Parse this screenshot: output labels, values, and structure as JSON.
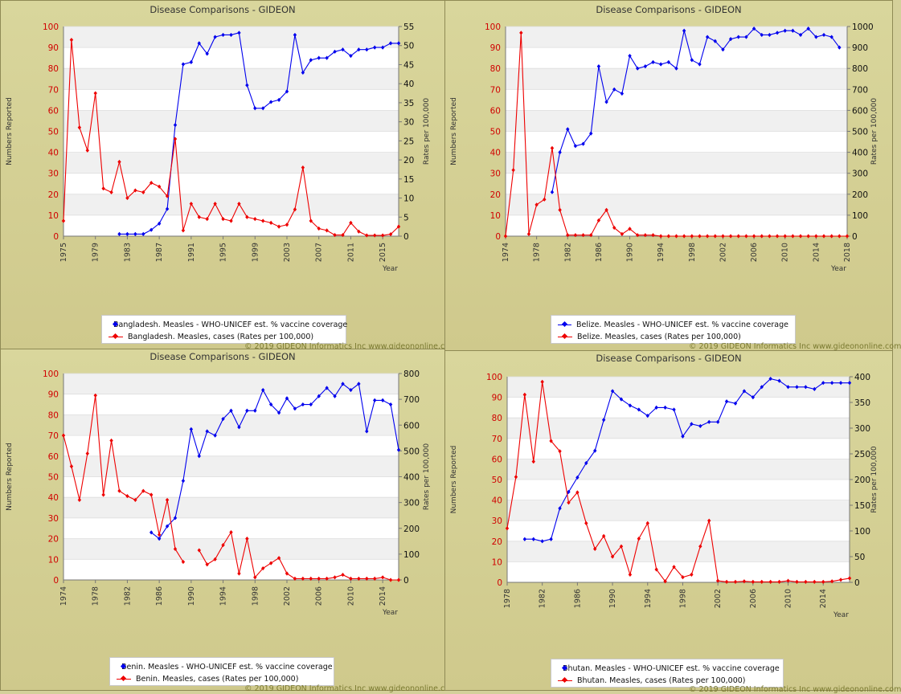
{
  "footer": "© 2019 GIDEON Informatics Inc www.gideononline.com",
  "colors": {
    "coverage": "#0000ee",
    "cases": "#ee0000",
    "left_axis_text": "#d00000"
  },
  "chart_data": [
    {
      "type": "line",
      "title": "Disease Comparisons - GIDEON",
      "ylabel_left": "Numbers Reported",
      "ylabel_right": "Rates per 100,000",
      "xlabel": "Year",
      "x_range": [
        1975,
        2017
      ],
      "x_ticks": [
        1975,
        1979,
        1983,
        1987,
        1991,
        1995,
        1999,
        2003,
        2007,
        2011,
        2015
      ],
      "ylim_left": [
        0,
        100
      ],
      "y_ticks_left": [
        0,
        10,
        20,
        30,
        40,
        50,
        60,
        70,
        80,
        90,
        100
      ],
      "ylim_right": [
        0,
        55
      ],
      "y_ticks_right": [
        0,
        5,
        10,
        15,
        20,
        25,
        30,
        35,
        40,
        45,
        50,
        55
      ],
      "grid": true,
      "series": [
        {
          "name": "Bangladesh. Measles - WHO-UNICEF est. % vaccine coverage",
          "axis": "left",
          "color": "#0000ee",
          "x": [
            1982,
            1983,
            1984,
            1985,
            1986,
            1987,
            1988,
            1989,
            1990,
            1991,
            1992,
            1993,
            1994,
            1995,
            1996,
            1997,
            1998,
            1999,
            2000,
            2001,
            2002,
            2003,
            2004,
            2005,
            2006,
            2007,
            2008,
            2009,
            2010,
            2011,
            2012,
            2013,
            2014,
            2015,
            2016,
            2017
          ],
          "y": [
            1,
            1,
            1,
            1,
            3,
            6,
            13,
            53,
            82,
            83,
            92,
            87,
            95,
            96,
            96,
            97,
            72,
            61,
            61,
            64,
            65,
            69,
            96,
            78,
            84,
            85,
            85,
            88,
            89,
            86,
            89,
            89,
            90,
            90,
            92,
            92
          ]
        },
        {
          "name": "Bangladesh. Measles, cases (Rates per 100,000)",
          "axis": "right",
          "color": "#ee0000",
          "x": [
            1975,
            1976,
            1977,
            1978,
            1979,
            1980,
            1981,
            1982,
            1983,
            1984,
            1985,
            1986,
            1987,
            1988,
            1989,
            1990,
            1991,
            1992,
            1993,
            1994,
            1995,
            1996,
            1997,
            1998,
            1999,
            2000,
            2001,
            2002,
            2003,
            2004,
            2005,
            2006,
            2007,
            2008,
            2009,
            2010,
            2011,
            2012,
            2013,
            2014,
            2015,
            2016,
            2017
          ],
          "y": [
            4,
            51.5,
            28.5,
            22.5,
            37.5,
            12.5,
            11.5,
            19.5,
            10,
            12,
            11.5,
            14,
            13,
            10.5,
            25.5,
            1.5,
            8.5,
            5,
            4.5,
            8.5,
            4.5,
            4,
            8.5,
            5,
            4.5,
            4,
            3.5,
            2.5,
            3,
            7,
            18,
            4,
            2,
            1.5,
            0.3,
            0.3,
            3.5,
            1.2,
            0.2,
            0.2,
            0.2,
            0.5,
            2.5
          ]
        }
      ]
    },
    {
      "type": "line",
      "title": "Disease Comparisons - GIDEON",
      "ylabel_left": "Numbers Reported",
      "ylabel_right": "Rates per 100,000",
      "xlabel": "Year",
      "x_range": [
        1974,
        2018
      ],
      "x_ticks": [
        1974,
        1978,
        1982,
        1986,
        1990,
        1994,
        1998,
        2002,
        2006,
        2010,
        2014,
        2018
      ],
      "ylim_left": [
        0,
        100
      ],
      "y_ticks_left": [
        0,
        10,
        20,
        30,
        40,
        50,
        60,
        70,
        80,
        90,
        100
      ],
      "ylim_right": [
        0,
        1000
      ],
      "y_ticks_right": [
        0,
        100,
        200,
        300,
        400,
        500,
        600,
        700,
        800,
        900,
        1000
      ],
      "grid": true,
      "series": [
        {
          "name": "Belize. Measles - WHO-UNICEF est. % vaccine coverage",
          "axis": "left",
          "color": "#0000ee",
          "x": [
            1980,
            1981,
            1982,
            1983,
            1984,
            1985,
            1986,
            1987,
            1988,
            1989,
            1990,
            1991,
            1992,
            1993,
            1994,
            1995,
            1996,
            1997,
            1998,
            1999,
            2000,
            2001,
            2002,
            2003,
            2004,
            2005,
            2006,
            2007,
            2008,
            2009,
            2010,
            2011,
            2012,
            2013,
            2014,
            2015,
            2016,
            2017
          ],
          "y": [
            21,
            40,
            51,
            43,
            44,
            49,
            81,
            64,
            70,
            68,
            86,
            80,
            81,
            83,
            82,
            83,
            80,
            98,
            84,
            82,
            95,
            93,
            89,
            94,
            95,
            95,
            99,
            96,
            96,
            97,
            98,
            98,
            96,
            99,
            95,
            96,
            95,
            90
          ]
        },
        {
          "name": "Belize. Measles, cases (Rates per 100,000)",
          "axis": "right",
          "color": "#ee0000",
          "x": [
            1974,
            1975,
            1976,
            1977,
            1978,
            1979,
            1980,
            1981,
            1982,
            1983,
            1984,
            1985,
            1986,
            1987,
            1988,
            1989,
            1990,
            1991,
            1992,
            1993,
            1994,
            1995,
            1996,
            1997,
            1998,
            1999,
            2000,
            2001,
            2002,
            2003,
            2004,
            2005,
            2006,
            2007,
            2008,
            2009,
            2010,
            2011,
            2012,
            2013,
            2014,
            2015,
            2016,
            2017,
            2018
          ],
          "y": [
            0,
            315,
            970,
            10,
            150,
            175,
            420,
            125,
            5,
            5,
            5,
            5,
            75,
            125,
            40,
            10,
            35,
            5,
            5,
            5,
            0,
            0,
            0,
            0,
            0,
            0,
            0,
            0,
            0,
            0,
            0,
            0,
            0,
            0,
            0,
            0,
            0,
            0,
            0,
            0,
            0,
            0,
            0,
            0,
            0
          ]
        }
      ]
    },
    {
      "type": "line",
      "title": "Disease Comparisons - GIDEON",
      "ylabel_left": "Numbers Reported",
      "ylabel_right": "Rates per 100,000",
      "xlabel": "Year",
      "x_range": [
        1974,
        2016
      ],
      "x_ticks": [
        1974,
        1978,
        1982,
        1986,
        1990,
        1994,
        1998,
        2002,
        2006,
        2010,
        2014
      ],
      "ylim_left": [
        0,
        100
      ],
      "y_ticks_left": [
        0,
        10,
        20,
        30,
        40,
        50,
        60,
        70,
        80,
        90,
        100
      ],
      "ylim_right": [
        0,
        800
      ],
      "y_ticks_right": [
        0,
        100,
        200,
        300,
        400,
        500,
        600,
        700,
        800
      ],
      "grid": true,
      "series": [
        {
          "name": "Benin. Measles - WHO-UNICEF est. % vaccine coverage",
          "axis": "left",
          "color": "#0000ee",
          "x": [
            1985,
            1986,
            1987,
            1988,
            1989,
            1990,
            1991,
            1992,
            1993,
            1994,
            1995,
            1996,
            1997,
            1998,
            1999,
            2000,
            2001,
            2002,
            2003,
            2004,
            2005,
            2006,
            2007,
            2008,
            2009,
            2010,
            2011,
            2012,
            2013,
            2014,
            2015,
            2016
          ],
          "y": [
            23,
            20,
            26,
            30,
            48,
            73,
            60,
            72,
            70,
            78,
            82,
            74,
            82,
            82,
            92,
            85,
            81,
            88,
            83,
            85,
            85,
            89,
            93,
            89,
            95,
            92,
            95,
            72,
            87,
            87,
            85,
            63
          ]
        },
        {
          "name": "Benin. Measles, cases (Rates per 100,000)",
          "axis": "right",
          "color": "#ee0000",
          "x": [
            1974,
            1975,
            1976,
            1977,
            1978,
            1979,
            1980,
            1981,
            1982,
            1983,
            1984,
            1985,
            1986,
            1987,
            1988,
            1989,
            1990,
            1991,
            1992,
            1993,
            1994,
            1995,
            1996,
            1997,
            1998,
            1999,
            2000,
            2001,
            2002,
            2003,
            2004,
            2005,
            2006,
            2007,
            2008,
            2009,
            2010,
            2011,
            2012,
            2013,
            2014,
            2015,
            2016
          ],
          "y": [
            560,
            440,
            310,
            490,
            715,
            330,
            540,
            345,
            325,
            310,
            345,
            330,
            175,
            310,
            120,
            70,
            null,
            115,
            60,
            80,
            135,
            185,
            25,
            160,
            10,
            45,
            65,
            85,
            25,
            5,
            5,
            5,
            5,
            5,
            10,
            20,
            5,
            5,
            5,
            5,
            10,
            0,
            0
          ]
        }
      ]
    },
    {
      "type": "line",
      "title": "Disease Comparisons - GIDEON",
      "ylabel_left": "Numbers Reported",
      "ylabel_right": "Rates per 100,000",
      "xlabel": "Year",
      "x_range": [
        1978,
        2017
      ],
      "x_ticks": [
        1978,
        1982,
        1986,
        1990,
        1994,
        1998,
        2002,
        2006,
        2010,
        2014
      ],
      "ylim_left": [
        0,
        100
      ],
      "y_ticks_left": [
        0,
        10,
        20,
        30,
        40,
        50,
        60,
        70,
        80,
        90,
        100
      ],
      "ylim_right": [
        0,
        400
      ],
      "y_ticks_right": [
        0,
        50,
        100,
        150,
        200,
        250,
        300,
        350,
        400
      ],
      "grid": true,
      "series": [
        {
          "name": "Bhutan. Measles - WHO-UNICEF est. % vaccine coverage",
          "axis": "left",
          "color": "#0000ee",
          "x": [
            1980,
            1981,
            1982,
            1983,
            1984,
            1985,
            1986,
            1987,
            1988,
            1989,
            1990,
            1991,
            1992,
            1993,
            1994,
            1995,
            1996,
            1997,
            1998,
            1999,
            2000,
            2001,
            2002,
            2003,
            2004,
            2005,
            2006,
            2007,
            2008,
            2009,
            2010,
            2011,
            2012,
            2013,
            2014,
            2015,
            2016,
            2017
          ],
          "y": [
            21,
            21,
            20,
            21,
            36,
            44,
            51,
            58,
            64,
            79,
            93,
            89,
            86,
            84,
            81,
            85,
            85,
            84,
            71,
            77,
            76,
            78,
            78,
            88,
            87,
            93,
            90,
            95,
            99,
            98,
            95,
            95,
            95,
            94,
            97,
            97,
            97,
            97
          ]
        },
        {
          "name": "Bhutan. Measles, cases (Rates per 100,000)",
          "axis": "right",
          "color": "#ee0000",
          "x": [
            1978,
            1979,
            1980,
            1981,
            1982,
            1983,
            1984,
            1985,
            1986,
            1987,
            1988,
            1989,
            1990,
            1991,
            1992,
            1993,
            1994,
            1995,
            1996,
            1997,
            1998,
            1999,
            2000,
            2001,
            2002,
            2003,
            2004,
            2005,
            2006,
            2007,
            2008,
            2009,
            2010,
            2011,
            2012,
            2013,
            2014,
            2015,
            2016,
            2017
          ],
          "y": [
            105,
            205,
            365,
            235,
            390,
            275,
            255,
            155,
            175,
            115,
            65,
            90,
            50,
            70,
            15,
            85,
            115,
            25,
            2,
            30,
            10,
            15,
            70,
            120,
            3,
            1,
            1,
            2,
            1,
            1,
            1,
            1,
            3,
            1,
            1,
            1,
            1,
            2,
            5,
            8
          ]
        }
      ]
    }
  ]
}
